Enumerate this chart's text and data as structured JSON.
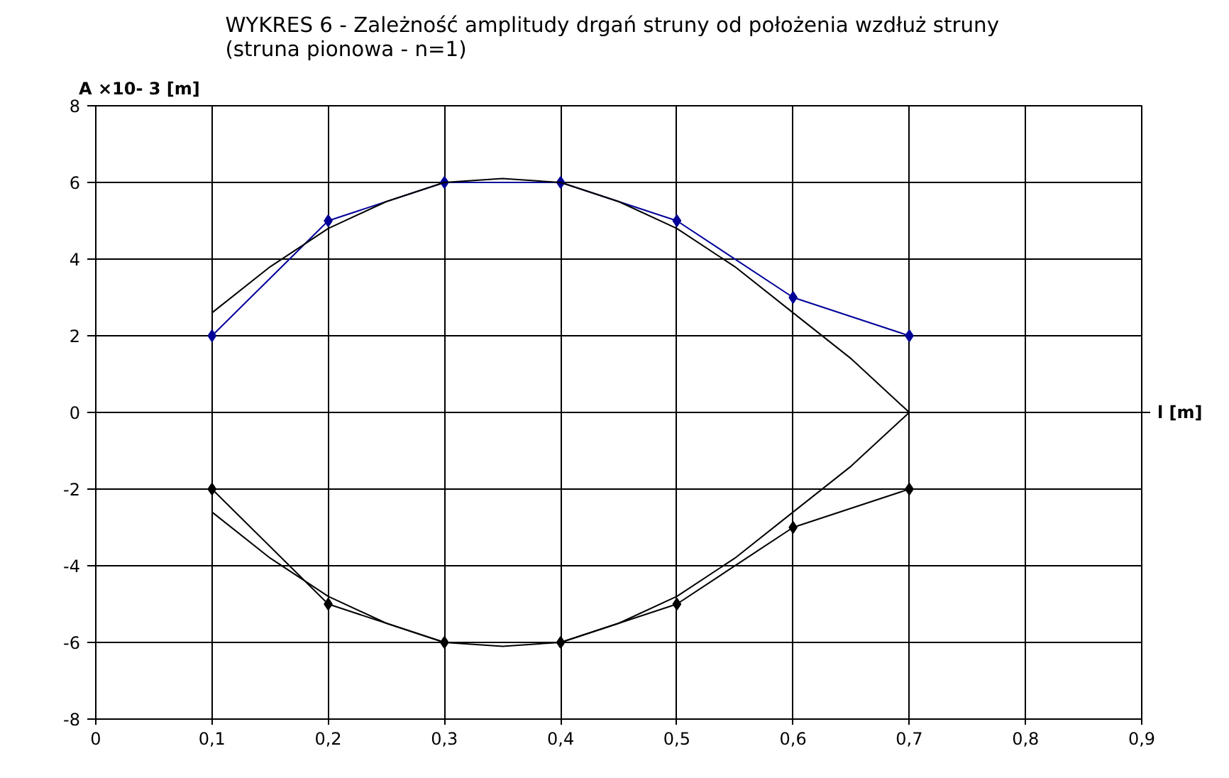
{
  "chart_data": {
    "type": "line",
    "title": "WYKRES 6  -  Zależność amplitudy drgań struny od położenia wzdłuż struny\n(struna pionowa  - n=1)",
    "xlabel": "l [m]",
    "ylabel": "A ×10- 3 [m]",
    "x": [
      0.1,
      0.2,
      0.3,
      0.4,
      0.5,
      0.6,
      0.7
    ],
    "series": [
      {
        "color": "#000099",
        "values": [
          2,
          5,
          6,
          6,
          5,
          3,
          2
        ],
        "marker": "diamond"
      },
      {
        "color": "#000000",
        "values": [
          -2,
          -5,
          -6,
          -6,
          -5,
          -3,
          -2
        ],
        "marker": "diamond"
      },
      {
        "color": "#000000",
        "marker": "none",
        "x": [
          0.1,
          0.15,
          0.2,
          0.25,
          0.3,
          0.35,
          0.4,
          0.45,
          0.5,
          0.55,
          0.6,
          0.65,
          0.7
        ],
        "values": [
          2.6,
          3.8,
          4.8,
          5.5,
          6.0,
          6.1,
          6.0,
          5.5,
          4.8,
          3.8,
          2.6,
          1.4,
          0
        ]
      },
      {
        "color": "#000000",
        "marker": "none",
        "x": [
          0.1,
          0.15,
          0.2,
          0.25,
          0.3,
          0.35,
          0.4,
          0.45,
          0.5,
          0.55,
          0.6,
          0.65,
          0.7
        ],
        "values": [
          -2.6,
          -3.8,
          -4.8,
          -5.5,
          -6.0,
          -6.1,
          -6.0,
          -5.5,
          -4.8,
          -3.8,
          -2.6,
          -1.4,
          0
        ]
      }
    ],
    "xlim": [
      0,
      0.9
    ],
    "ylim": [
      -8,
      8
    ],
    "xticks": [
      0,
      {
        "value": 0.1,
        "label": "0,1"
      },
      {
        "value": 0.2,
        "label": "0,2"
      },
      {
        "value": 0.3,
        "label": "0,3"
      },
      {
        "value": 0.4,
        "label": "0,4"
      },
      {
        "value": 0.5,
        "label": "0,5"
      },
      {
        "value": 0.6,
        "label": "0,6"
      },
      {
        "value": 0.7,
        "label": "0,7"
      },
      {
        "value": 0.8,
        "label": "0,8"
      },
      {
        "value": 0.9,
        "label": "0,9"
      }
    ],
    "yticks": [
      -8,
      -6,
      -4,
      -2,
      0,
      2,
      4,
      6,
      8
    ],
    "grid": true,
    "line_style": "solid"
  }
}
